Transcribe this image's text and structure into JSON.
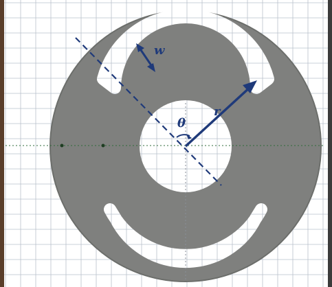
{
  "labels": {
    "width": "w",
    "radius": "r",
    "angle": "θ"
  },
  "colors": {
    "background": "#ffffff",
    "grid": "#b9c0cc",
    "disk": "#7f807e",
    "disk_edge": "#6c6e6b",
    "slot": "#ffffff",
    "annotation": "#1f3a7a",
    "guide": "#2f6b3a",
    "border_left": "#5a3e2a"
  }
}
